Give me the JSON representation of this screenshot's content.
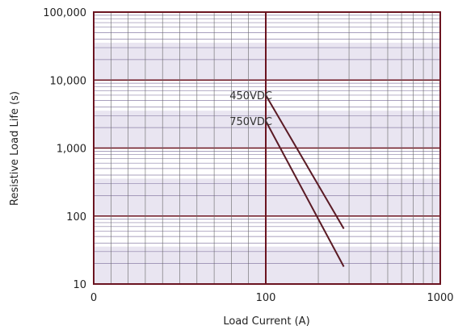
{
  "colors": {
    "frame": "#6b1420",
    "series_line": "#5a1a24",
    "band": "#e9e5f1",
    "minor_grid": "#8c80a8",
    "major_grid": "#666666"
  },
  "chart_data": {
    "type": "line",
    "xlabel": "Load Current (A)",
    "ylabel": "Resistive Load Life (s)",
    "xlim": [
      0,
      1000
    ],
    "x_tick_labels": [
      "0",
      "100",
      "1000"
    ],
    "y_tick_labels": [
      "10",
      "100",
      "1,000",
      "10,000",
      "100,000"
    ],
    "y_tick_values": [
      10,
      100,
      1000,
      10000,
      100000
    ],
    "ylim": [
      10,
      100000
    ],
    "grid": true,
    "series": [
      {
        "name": "450VDC",
        "x": [
          100,
          280
        ],
        "y": [
          6000,
          65
        ]
      },
      {
        "name": "750VDC",
        "x": [
          100,
          280
        ],
        "y": [
          2500,
          18
        ]
      }
    ]
  }
}
